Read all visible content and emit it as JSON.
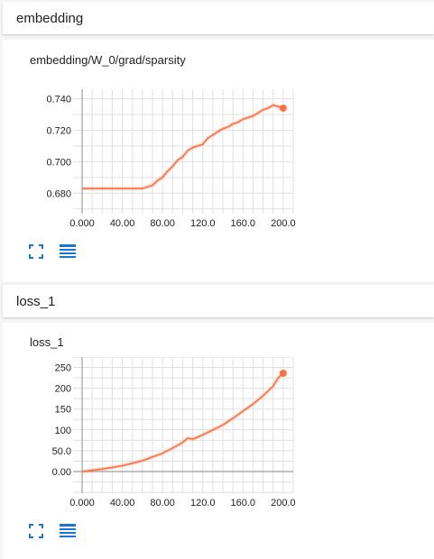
{
  "sections": [
    {
      "header": "embedding",
      "card": {
        "title": "embedding/W_0/grad/sparsity",
        "chart_data": {
          "type": "line",
          "title": "embedding/W_0/grad/sparsity",
          "x_ticks": [
            "0.000",
            "40.00",
            "80.00",
            "120.0",
            "160.0",
            "200.0"
          ],
          "y_ticks": [
            "0.680",
            "0.700",
            "0.720",
            "0.740"
          ],
          "xlim": [
            -9,
            210
          ],
          "ylim": [
            0.667,
            0.746
          ],
          "grid": true,
          "series": [
            {
              "color": "#ff7043",
              "x": [
                0,
                10,
                20,
                30,
                40,
                50,
                55,
                60,
                65,
                70,
                75,
                80,
                85,
                90,
                95,
                100,
                105,
                110,
                115,
                120,
                125,
                130,
                135,
                140,
                145,
                150,
                155,
                160,
                165,
                170,
                175,
                180,
                185,
                190,
                195,
                200
              ],
              "y": [
                0.683,
                0.683,
                0.683,
                0.683,
                0.683,
                0.683,
                0.683,
                0.683,
                0.684,
                0.685,
                0.688,
                0.69,
                0.694,
                0.697,
                0.701,
                0.703,
                0.707,
                0.709,
                0.71,
                0.711,
                0.715,
                0.717,
                0.719,
                0.721,
                0.722,
                0.724,
                0.725,
                0.727,
                0.728,
                0.729,
                0.731,
                0.733,
                0.734,
                0.736,
                0.735,
                0.734
              ]
            }
          ]
        }
      }
    },
    {
      "header": "loss_1",
      "card": {
        "title": "loss_1",
        "chart_data": {
          "type": "line",
          "title": "loss_1",
          "x_ticks": [
            "0.000",
            "40.00",
            "80.00",
            "120.0",
            "160.0",
            "200.0"
          ],
          "y_ticks": [
            "0.00",
            "50.0",
            "100",
            "150",
            "200",
            "250"
          ],
          "xlim": [
            -9,
            210
          ],
          "ylim": [
            -52,
            275
          ],
          "grid": true,
          "series": [
            {
              "color": "#ff7043",
              "x": [
                0,
                10,
                20,
                30,
                40,
                50,
                60,
                70,
                80,
                90,
                100,
                105,
                110,
                120,
                130,
                140,
                150,
                160,
                170,
                180,
                190,
                195,
                200
              ],
              "y": [
                0,
                3,
                6,
                10,
                14,
                20,
                26,
                35,
                44,
                56,
                70,
                80,
                78,
                88,
                100,
                112,
                128,
                145,
                162,
                182,
                205,
                225,
                236
              ]
            }
          ]
        }
      }
    }
  ]
}
